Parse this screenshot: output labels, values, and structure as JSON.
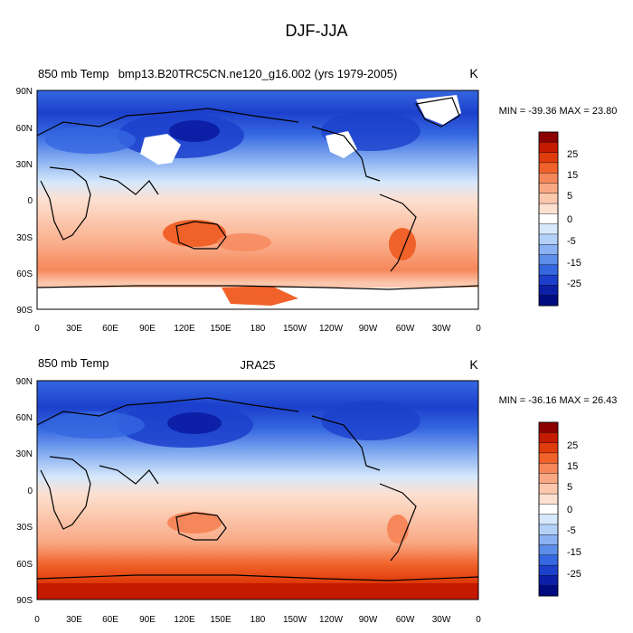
{
  "main_title": "DJF-JJA",
  "panels": [
    {
      "left_title": "850 mb Temp",
      "center_title": "bmp13.B20TRC5CN.ne120_g16.002 (yrs 1979-2005)",
      "units": "K",
      "stats": "MIN = -39.36 MAX =  23.80"
    },
    {
      "left_title": "850 mb Temp",
      "center_title": "JRA25",
      "units": "K",
      "stats": "MIN = -36.16 MAX =  26.43"
    }
  ],
  "lon_labels": [
    "0",
    "30E",
    "60E",
    "90E",
    "120E",
    "150E",
    "180",
    "150W",
    "120W",
    "90W",
    "60W",
    "30W",
    "0"
  ],
  "lat_labels": [
    "90N",
    "60N",
    "30N",
    "0",
    "30S",
    "60S",
    "90S"
  ],
  "colorbar": {
    "labels": [
      "25",
      "15",
      "5",
      "-5",
      "-15",
      "-25"
    ],
    "extra_labels": [
      "0"
    ],
    "colors": [
      "#8b0000",
      "#c41a00",
      "#e03b0a",
      "#f0622a",
      "#f6875a",
      "#f9a884",
      "#fbc7ad",
      "#fde0d0",
      "#ffffff",
      "#d6e8fb",
      "#b3d0f7",
      "#8ab1f2",
      "#5c8de9",
      "#3567e0",
      "#1c40cc",
      "#0c1fa6",
      "#000b80"
    ]
  },
  "chart_data": {
    "type": "heatmap",
    "title": "DJF-JJA",
    "units": "K",
    "x_range": [
      "0",
      "0"
    ],
    "y_range": [
      "90S",
      "90N"
    ],
    "colorbar_levels": [
      -30,
      -25,
      -20,
      -15,
      -10,
      -5,
      0,
      5,
      10,
      15,
      20,
      25,
      30
    ],
    "panels": [
      {
        "title": "bmp13.B20TRC5CN.ne120_g16.002 (yrs 1979-2005)",
        "min": -39.36,
        "max": 23.8
      },
      {
        "title": "JRA25",
        "min": -36.16,
        "max": 26.43
      }
    ]
  }
}
